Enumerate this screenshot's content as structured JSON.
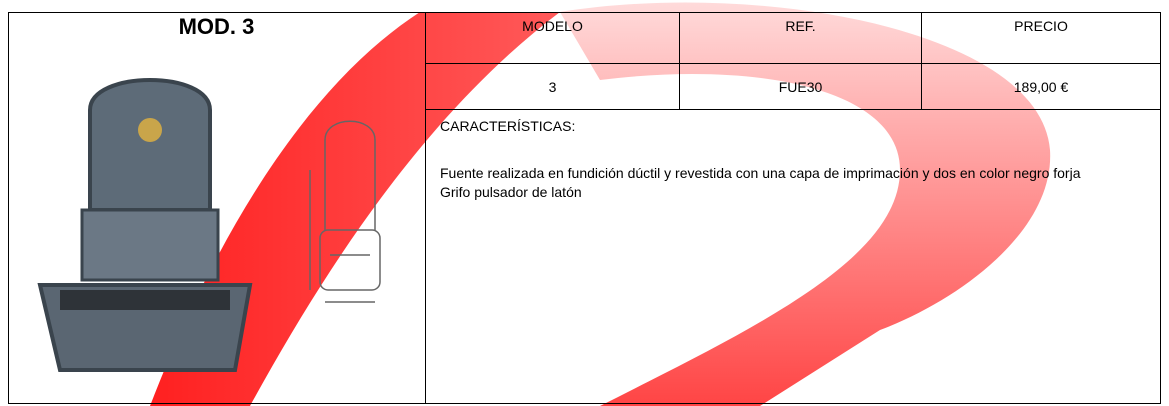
{
  "title": "MOD. 3",
  "table": {
    "headers": [
      "MODELO",
      "REF.",
      "PRECIO"
    ],
    "rows": [
      [
        "3",
        "FUE30",
        "189,00 €"
      ]
    ]
  },
  "characteristics": {
    "label": "CARACTERÍSTICAS:",
    "lines": [
      "Fuente realizada en fundición dúctil y revestida con una capa de imprimación y dos en color negro forja",
      "Grifo pulsador de latón"
    ]
  }
}
